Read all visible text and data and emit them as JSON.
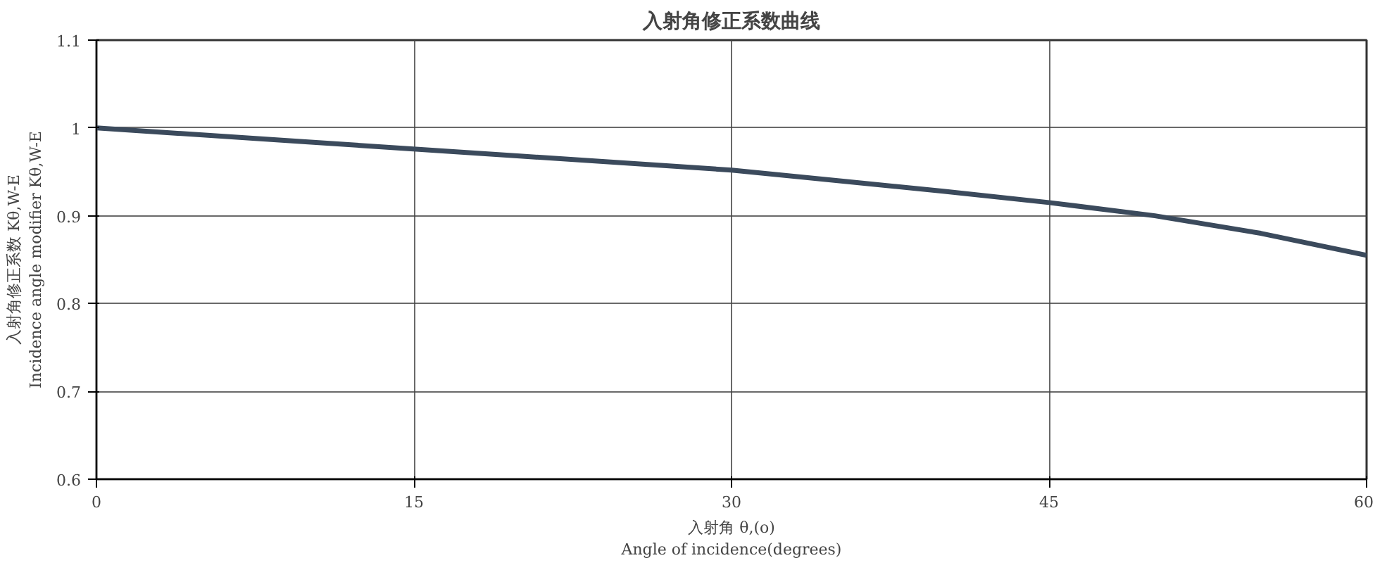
{
  "chart_data": {
    "type": "line",
    "title": "入射角修正系数曲线",
    "xlabel": "入射角 θ,(o)\nAngle of incidence(degrees)",
    "ylabel": "入射角修正系数 Kθ,W-E\nIncidence angle modifier Kθ,W-E",
    "x": [
      0,
      10,
      20,
      30,
      40,
      45,
      50,
      55,
      60
    ],
    "series": [
      {
        "color": "#3b4a5c",
        "values": [
          1.0,
          0.984,
          0.968,
          0.952,
          0.928,
          0.915,
          0.9,
          0.88,
          0.855
        ]
      }
    ],
    "xlim": [
      0,
      60
    ],
    "xticks": [
      0,
      15,
      30,
      45,
      60
    ],
    "ylim": [
      0.6,
      1.1
    ],
    "yticks": [
      {
        "value": 0.6,
        "label": "0.6"
      },
      {
        "value": 0.7,
        "label": "0.7"
      },
      {
        "value": 0.8,
        "label": "0.8"
      },
      {
        "value": 0.9,
        "label": "0.9"
      },
      {
        "value": 1,
        "label": "1"
      },
      {
        "value": 1.1,
        "label": "1.1"
      }
    ],
    "grid": true,
    "marker": "none",
    "line_style": "solid"
  }
}
